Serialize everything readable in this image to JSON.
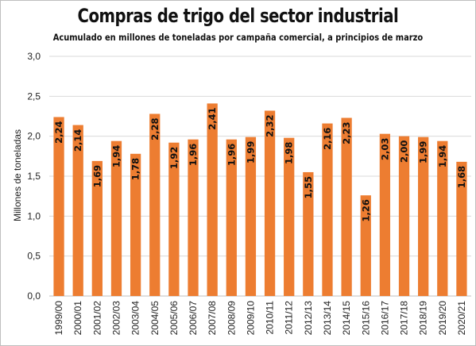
{
  "chart_data": {
    "type": "bar",
    "title": "Compras de trigo del sector industrial",
    "subtitle": "Acumulado en millones de toneladas por campaña comercial, a principios de marzo",
    "xlabel": "",
    "ylabel": "Millones de toneladas",
    "ylim": [
      0,
      3
    ],
    "yticks": [
      "0,0",
      "0,5",
      "1,0",
      "1,5",
      "2,0",
      "2,5",
      "3,0"
    ],
    "grid": true,
    "legend": "none",
    "bar_color": "#ED7D31",
    "categories": [
      "1999/00",
      "2000/01",
      "2001/02",
      "2002/03",
      "2003/04",
      "2004/05",
      "2005/06",
      "2006/07",
      "2007/08",
      "2008/09",
      "2009/10",
      "2010/11",
      "2011/12",
      "2012/13",
      "2013/14",
      "2014/15",
      "2015/16",
      "2016/17",
      "2017/18",
      "2018/19",
      "2019/20",
      "2020/21"
    ],
    "values": [
      2.24,
      2.14,
      1.69,
      1.94,
      1.78,
      2.28,
      1.92,
      1.96,
      2.41,
      1.96,
      1.99,
      2.32,
      1.98,
      1.55,
      2.16,
      2.23,
      1.26,
      2.03,
      2.0,
      1.99,
      1.94,
      1.68
    ],
    "value_labels": [
      "2,24",
      "2,14",
      "1,69",
      "1,94",
      "1,78",
      "2,28",
      "1,92",
      "1,96",
      "2,41",
      "1,96",
      "1,99",
      "2,32",
      "1,98",
      "1,55",
      "2,16",
      "2,23",
      "1,26",
      "2,03",
      "2,00",
      "1,99",
      "1,94",
      "1,68"
    ]
  }
}
